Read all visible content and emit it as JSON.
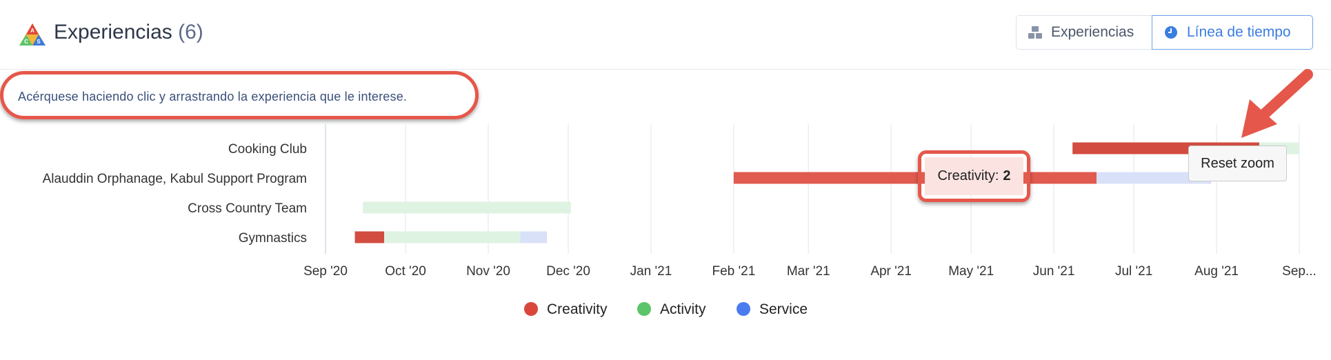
{
  "header": {
    "title": "Experiencias",
    "count": "(6)",
    "logo_letters": [
      "A",
      "C",
      "S"
    ],
    "toggle": {
      "experiences_label": "Experiencias",
      "timeline_label": "Línea de tiempo",
      "active": "timeline"
    }
  },
  "hint": "Acérquese haciendo clic y arrastrando la experiencia que le interese.",
  "tooltip": {
    "label": "Creativity:",
    "value": "2"
  },
  "reset_zoom_label": "Reset zoom",
  "colors": {
    "creativity": "#e05a4f",
    "creativity_dark": "#d24d40",
    "activity": "#dff3e2",
    "service": "#d9e1f8",
    "legend_creativity": "#d9473c",
    "legend_activity": "#5cc46a",
    "legend_service": "#4a7cf0",
    "annotation": "#e5574a"
  },
  "chart_data": {
    "type": "timeline",
    "categories": [
      "Cooking Club",
      "Alauddin Orphanage, Kabul Support Program",
      "Cross Country Team",
      "Gymnastics"
    ],
    "x_ticks": [
      "Sep '20",
      "Oct '20",
      "Nov '20",
      "Dec '20",
      "Jan '21",
      "Feb '21",
      "Mar '21",
      "Apr '21",
      "May '21",
      "Jun '21",
      "Jul '21",
      "Aug '21",
      "Sep..."
    ],
    "xlim": [
      "2020-09-01",
      "2021-09-01"
    ],
    "series": [
      {
        "name": "Creativity",
        "segments": [
          {
            "category": "Cooking Club",
            "start": "2021-06-08",
            "end": "2021-08-17",
            "shade": "dark"
          },
          {
            "category": "Alauddin Orphanage, Kabul Support Program",
            "start": "2021-02-01",
            "end": "2021-06-17"
          },
          {
            "category": "Gymnastics",
            "start": "2020-09-12",
            "end": "2020-09-23",
            "shade": "dark"
          }
        ]
      },
      {
        "name": "Activity",
        "segments": [
          {
            "category": "Cooking Club",
            "start": "2021-08-17",
            "end": "2021-09-01"
          },
          {
            "category": "Cross Country Team",
            "start": "2020-09-15",
            "end": "2020-12-02"
          },
          {
            "category": "Gymnastics",
            "start": "2020-09-23",
            "end": "2020-11-13"
          }
        ]
      },
      {
        "name": "Service",
        "segments": [
          {
            "category": "Alauddin Orphanage, Kabul Support Program",
            "start": "2021-06-17",
            "end": "2021-07-30"
          },
          {
            "category": "Gymnastics",
            "start": "2020-11-13",
            "end": "2020-11-23"
          }
        ]
      }
    ],
    "legend": [
      "Creativity",
      "Activity",
      "Service"
    ],
    "legend_position": "bottom-center",
    "grid": true
  }
}
